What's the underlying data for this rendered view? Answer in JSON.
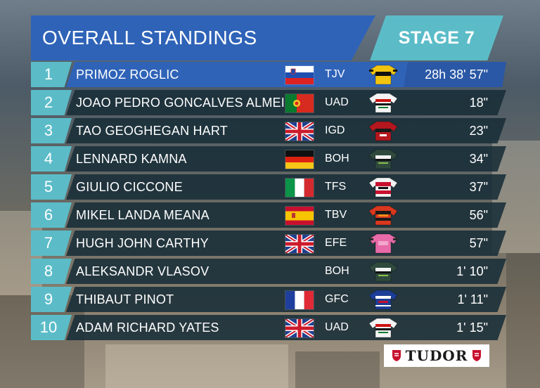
{
  "header": {
    "title": "OVERALL STANDINGS",
    "stage": "STAGE 7"
  },
  "standings": [
    {
      "pos": "1",
      "name": "PRIMOZ ROGLIC",
      "country": "slovenia",
      "team": "TJV",
      "jersey": "jersey-jumbo-visma-icon",
      "time": "28h 38' 57\""
    },
    {
      "pos": "2",
      "name": "JOAO PEDRO GONCALVES ALMEIDA",
      "country": "portugal",
      "team": "UAD",
      "jersey": "jersey-uae-icon",
      "time": "18\""
    },
    {
      "pos": "3",
      "name": "TAO GEOGHEGAN HART",
      "country": "uk",
      "team": "IGD",
      "jersey": "jersey-ineos-icon",
      "time": "23\""
    },
    {
      "pos": "4",
      "name": "LENNARD KAMNA",
      "country": "germany",
      "team": "BOH",
      "jersey": "jersey-bora-icon",
      "time": "34\""
    },
    {
      "pos": "5",
      "name": "GIULIO CICCONE",
      "country": "italy",
      "team": "TFS",
      "jersey": "jersey-trek-icon",
      "time": "37\""
    },
    {
      "pos": "6",
      "name": "MIKEL LANDA MEANA",
      "country": "spain",
      "team": "TBV",
      "jersey": "jersey-bahrain-icon",
      "time": "56\""
    },
    {
      "pos": "7",
      "name": "HUGH JOHN CARTHY",
      "country": "uk",
      "team": "EFE",
      "jersey": "jersey-ef-icon",
      "time": "57\""
    },
    {
      "pos": "8",
      "name": "ALEKSANDR VLASOV",
      "country": "",
      "team": "BOH",
      "jersey": "jersey-bora-icon",
      "time": "1' 10\""
    },
    {
      "pos": "9",
      "name": "THIBAUT PINOT",
      "country": "france",
      "team": "GFC",
      "jersey": "jersey-groupama-icon",
      "time": "1' 11\""
    },
    {
      "pos": "10",
      "name": "ADAM RICHARD YATES",
      "country": "uk",
      "team": "UAD",
      "jersey": "jersey-uae-icon",
      "time": "1' 15\""
    }
  ],
  "sponsor": {
    "brand": "TUDOR"
  },
  "colors": {
    "header_blue": "#2f63b8",
    "accent_teal": "#5bbcc8",
    "row_dark": "#182e38"
  }
}
